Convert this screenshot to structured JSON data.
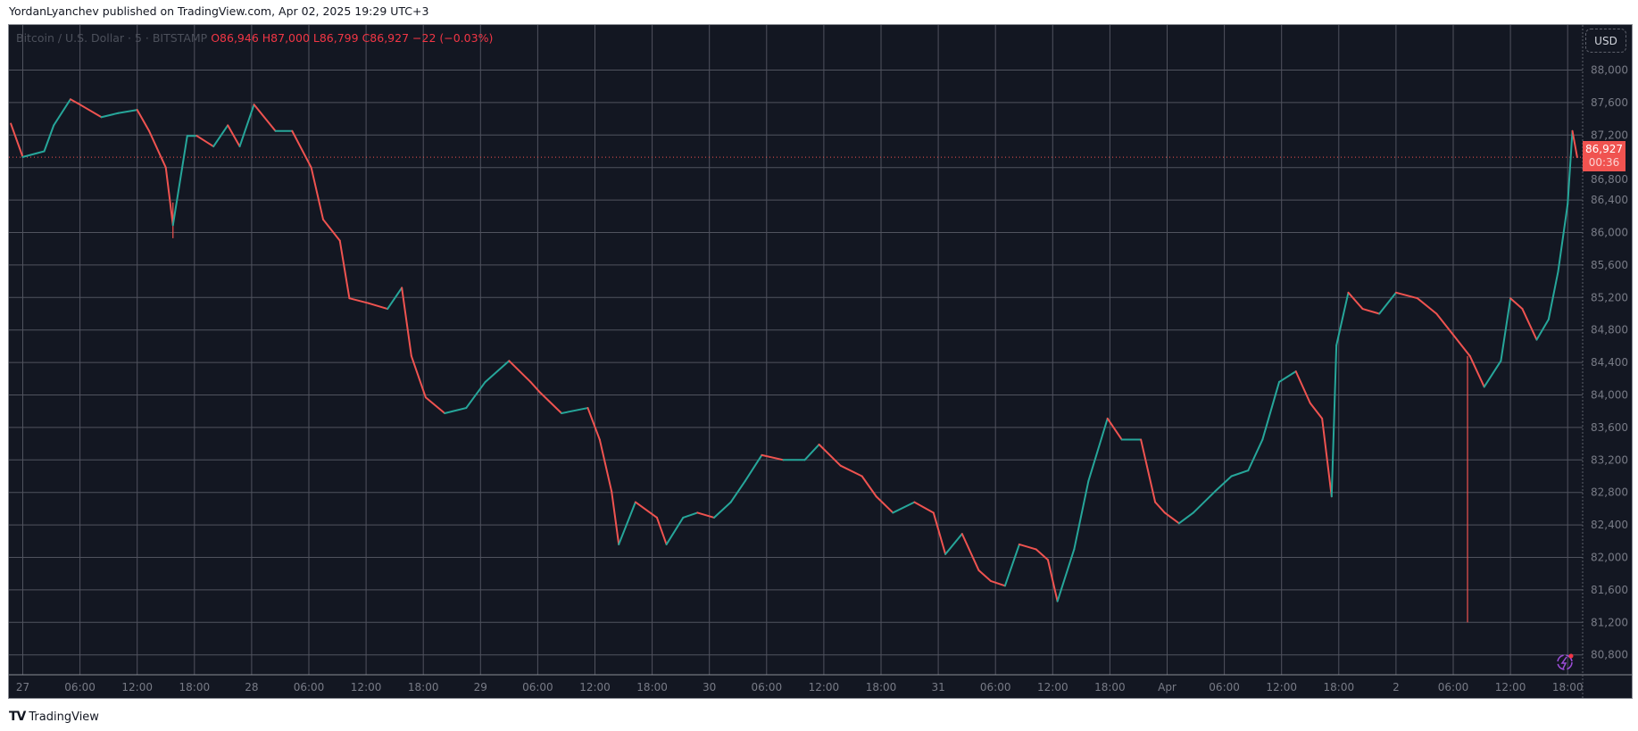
{
  "header": {
    "published": "YordanLyanchev published on TradingView.com, Apr 02, 2025 19:29 UTC+3"
  },
  "legend": {
    "symbol": "Bitcoin / U.S. Dollar · 5 · BITSTAMP",
    "open": "O86,946",
    "high": "H87,000",
    "low": "L86,799",
    "close": "C86,927",
    "change": "−22 (−0.03%)"
  },
  "currency_button": "USD",
  "last_price": {
    "price": "86,927",
    "countdown": "00:36"
  },
  "footer": {
    "brand": "TradingView",
    "logo": "TV"
  },
  "alert_icon": "lightning-alert-icon",
  "colors": {
    "background": "#131722",
    "up": "#26a69a",
    "down": "#ef5350",
    "grid": "#50535e",
    "last_price": "#f05350"
  },
  "chart_data": {
    "type": "line",
    "title": "",
    "timeframe": "5",
    "grid": true,
    "ylim": [
      80600,
      88400
    ],
    "y_ticks": [
      88000,
      87600,
      87200,
      86800,
      86400,
      86000,
      85600,
      85200,
      84800,
      84400,
      84000,
      83600,
      83200,
      82800,
      82400,
      82000,
      81600,
      81200,
      80800
    ],
    "y_tick_labels": [
      "88,000",
      "87,600",
      "87,200",
      "86,800",
      "86,400",
      "86,000",
      "85,600",
      "85,200",
      "84,800",
      "84,400",
      "84,000",
      "83,600",
      "83,200",
      "82,800",
      "82,400",
      "82,000",
      "81,600",
      "81,200",
      "80,800"
    ],
    "x_ticks": [
      "2025-03-27 00:00",
      "2025-03-27 06:00",
      "2025-03-27 12:00",
      "2025-03-27 18:00",
      "2025-03-28 00:00",
      "2025-03-28 06:00",
      "2025-03-28 12:00",
      "2025-03-28 18:00",
      "2025-03-29 00:00",
      "2025-03-29 06:00",
      "2025-03-29 12:00",
      "2025-03-29 18:00",
      "2025-03-30 00:00",
      "2025-03-30 06:00",
      "2025-03-30 12:00",
      "2025-03-30 18:00",
      "2025-03-31 00:00",
      "2025-03-31 06:00",
      "2025-03-31 12:00",
      "2025-03-31 18:00",
      "2025-04-01 00:00",
      "2025-04-01 06:00",
      "2025-04-01 12:00",
      "2025-04-01 18:00",
      "2025-04-02 00:00",
      "2025-04-02 06:00",
      "2025-04-02 12:00",
      "2025-04-02 18:00"
    ],
    "x_tick_labels": [
      "27",
      "06:00",
      "12:00",
      "18:00",
      "28",
      "06:00",
      "12:00",
      "18:00",
      "29",
      "06:00",
      "12:00",
      "18:00",
      "30",
      "06:00",
      "12:00",
      "18:00",
      "31",
      "06:00",
      "12:00",
      "18:00",
      "Apr",
      "06:00",
      "12:00",
      "18:00",
      "2",
      "06:00",
      "12:00",
      "18:00"
    ],
    "series": [
      {
        "points": [
          [
            "2025-03-26 22:45",
            87340
          ],
          [
            "2025-03-27 00:00",
            86930
          ],
          [
            "2025-03-27 02:15",
            87000
          ],
          [
            "2025-03-27 03:15",
            87320
          ],
          [
            "2025-03-27 05:00",
            87640
          ],
          [
            "2025-03-27 06:00",
            87575
          ],
          [
            "2025-03-27 08:15",
            87420
          ],
          [
            "2025-03-27 10:00",
            87470
          ],
          [
            "2025-03-27 12:00",
            87510
          ],
          [
            "2025-03-27 13:15",
            87250
          ],
          [
            "2025-03-27 15:00",
            86800
          ],
          [
            "2025-03-27 15:45",
            86090
          ],
          [
            "2025-03-27 17:15",
            87190
          ],
          [
            "2025-03-27 18:15",
            87190
          ],
          [
            "2025-03-27 20:00",
            87060
          ],
          [
            "2025-03-27 21:30",
            87320
          ],
          [
            "2025-03-27 22:45",
            87060
          ],
          [
            "2025-03-28 00:15",
            87575
          ],
          [
            "2025-03-28 02:30",
            87250
          ],
          [
            "2025-03-28 04:15",
            87250
          ],
          [
            "2025-03-28 06:15",
            86800
          ],
          [
            "2025-03-28 07:30",
            86160
          ],
          [
            "2025-03-28 09:15",
            85900
          ],
          [
            "2025-03-28 10:15",
            85190
          ],
          [
            "2025-03-28 12:15",
            85130
          ],
          [
            "2025-03-28 14:15",
            85060
          ],
          [
            "2025-03-28 15:45",
            85320
          ],
          [
            "2025-03-28 16:45",
            84480
          ],
          [
            "2025-03-28 18:15",
            83970
          ],
          [
            "2025-03-28 20:15",
            83775
          ],
          [
            "2025-03-28 22:30",
            83840
          ],
          [
            "2025-03-29 00:30",
            84160
          ],
          [
            "2025-03-29 03:00",
            84420
          ],
          [
            "2025-03-29 05:15",
            84160
          ],
          [
            "2025-03-29 06:15",
            84030
          ],
          [
            "2025-03-29 08:30",
            83775
          ],
          [
            "2025-03-29 11:15",
            83840
          ],
          [
            "2025-03-29 12:30",
            83450
          ],
          [
            "2025-03-29 13:45",
            82810
          ],
          [
            "2025-03-29 14:30",
            82160
          ],
          [
            "2025-03-29 16:15",
            82680
          ],
          [
            "2025-03-29 18:30",
            82490
          ],
          [
            "2025-03-29 19:30",
            82160
          ],
          [
            "2025-03-29 21:15",
            82490
          ],
          [
            "2025-03-29 22:45",
            82550
          ],
          [
            "2025-03-30 00:30",
            82490
          ],
          [
            "2025-03-30 02:15",
            82680
          ],
          [
            "2025-03-30 03:45",
            82940
          ],
          [
            "2025-03-30 05:30",
            83260
          ],
          [
            "2025-03-30 07:45",
            83200
          ],
          [
            "2025-03-30 10:00",
            83200
          ],
          [
            "2025-03-30 11:30",
            83390
          ],
          [
            "2025-03-30 13:45",
            83130
          ],
          [
            "2025-03-30 16:00",
            83000
          ],
          [
            "2025-03-30 17:30",
            82750
          ],
          [
            "2025-03-30 19:15",
            82550
          ],
          [
            "2025-03-30 21:30",
            82680
          ],
          [
            "2025-03-30 23:30",
            82550
          ],
          [
            "2025-03-31 00:45",
            82040
          ],
          [
            "2025-03-31 02:30",
            82290
          ],
          [
            "2025-03-31 04:15",
            81840
          ],
          [
            "2025-03-31 05:30",
            81710
          ],
          [
            "2025-03-31 07:00",
            81650
          ],
          [
            "2025-03-31 08:30",
            82160
          ],
          [
            "2025-03-31 10:15",
            82100
          ],
          [
            "2025-03-31 11:30",
            81970
          ],
          [
            "2025-03-31 12:30",
            81460
          ],
          [
            "2025-03-31 14:15",
            82100
          ],
          [
            "2025-03-31 15:45",
            82940
          ],
          [
            "2025-03-31 17:45",
            83710
          ],
          [
            "2025-03-31 19:15",
            83450
          ],
          [
            "2025-03-31 21:15",
            83450
          ],
          [
            "2025-03-31 22:45",
            82680
          ],
          [
            "2025-03-31 23:45",
            82550
          ],
          [
            "2025-04-01 01:15",
            82420
          ],
          [
            "2025-04-01 02:45",
            82550
          ],
          [
            "2025-04-01 05:00",
            82810
          ],
          [
            "2025-04-01 06:45",
            83000
          ],
          [
            "2025-04-01 08:30",
            83070
          ],
          [
            "2025-04-01 10:00",
            83450
          ],
          [
            "2025-04-01 11:45",
            84160
          ],
          [
            "2025-04-01 13:30",
            84290
          ],
          [
            "2025-04-01 15:00",
            83900
          ],
          [
            "2025-04-01 16:15",
            83710
          ],
          [
            "2025-04-01 17:15",
            82750
          ],
          [
            "2025-04-01 17:45",
            84610
          ],
          [
            "2025-04-01 19:00",
            85260
          ],
          [
            "2025-04-01 20:30",
            85060
          ],
          [
            "2025-04-01 22:15",
            85000
          ],
          [
            "2025-04-02 00:00",
            85260
          ],
          [
            "2025-04-02 02:15",
            85190
          ],
          [
            "2025-04-02 04:15",
            85000
          ],
          [
            "2025-04-02 06:00",
            84740
          ],
          [
            "2025-04-02 07:45",
            84480
          ],
          [
            "2025-04-02 09:15",
            84100
          ],
          [
            "2025-04-02 11:00",
            84420
          ],
          [
            "2025-04-02 12:00",
            85190
          ],
          [
            "2025-04-02 13:15",
            85060
          ],
          [
            "2025-04-02 14:45",
            84680
          ],
          [
            "2025-04-02 16:00",
            84930
          ],
          [
            "2025-04-02 17:00",
            85520
          ],
          [
            "2025-04-02 18:00",
            86350
          ],
          [
            "2025-04-02 18:30",
            87250
          ],
          [
            "2025-04-02 19:00",
            86927
          ]
        ]
      }
    ],
    "wicks": [
      {
        "time": "2025-03-27 15:45",
        "low": 85930
      },
      {
        "time": "2025-04-02 07:30",
        "high": 84480,
        "low": 81200
      }
    ],
    "last_price": 86927
  }
}
